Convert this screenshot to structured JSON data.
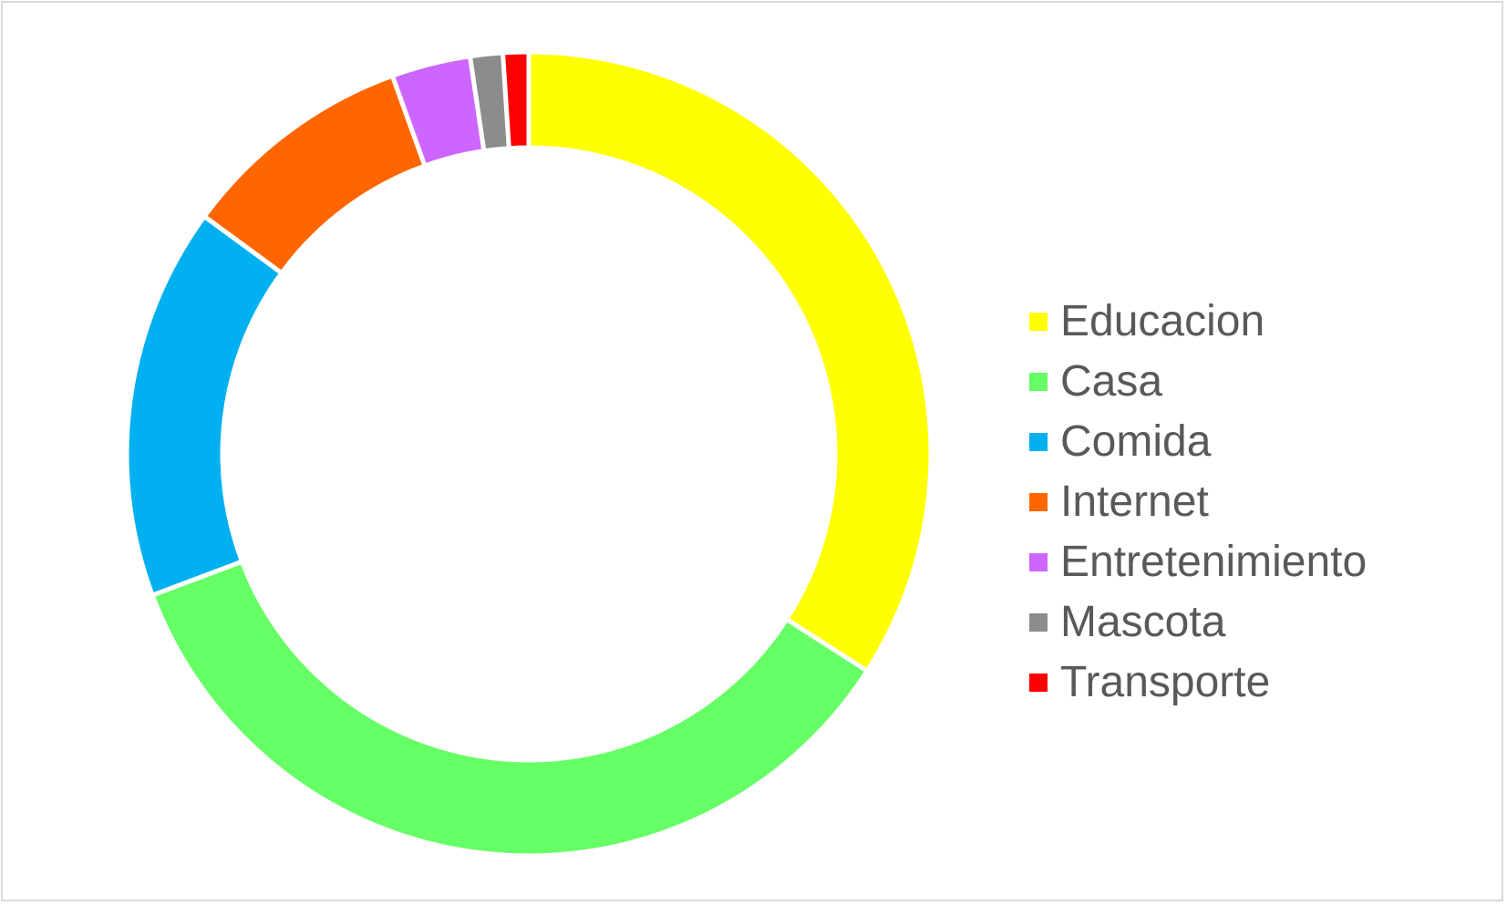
{
  "chart_data": {
    "type": "pie",
    "style": "donut",
    "legend_position": "right",
    "categories": [
      "Educacion",
      "Casa",
      "Comida",
      "Internet",
      "Entretenimiento",
      "Mascota",
      "Transporte"
    ],
    "values": [
      36.5,
      37.7,
      16.9,
      10.1,
      3.4,
      1.4,
      1.1
    ],
    "colors": [
      "#ffff00",
      "#66ff66",
      "#00b0f0",
      "#ff6600",
      "#cc66ff",
      "#8c8c8c",
      "#ff0000"
    ]
  }
}
